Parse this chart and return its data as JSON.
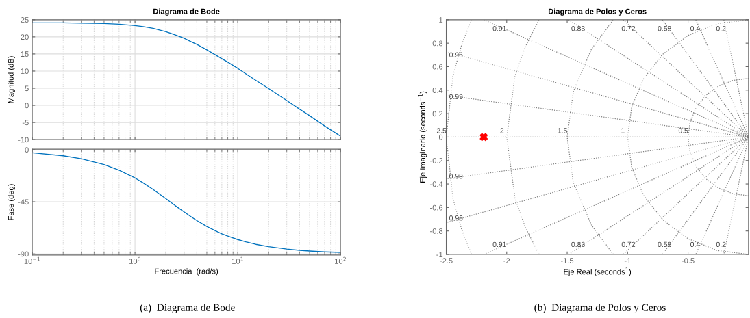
{
  "chart_data": [
    {
      "type": "line",
      "title": "Diagrama de Bode",
      "ylabel": "Magnitud (dB)",
      "log": "x",
      "grid": true,
      "tick_labels": "y",
      "xlim": [
        0.1,
        100
      ],
      "xticks": [
        {
          "value": 0.1,
          "label": null
        },
        {
          "value": 1,
          "label": null
        },
        {
          "value": 10,
          "label": null
        },
        {
          "value": 100,
          "label": null
        }
      ],
      "ylim": [
        -10,
        25
      ],
      "yticks": [
        -10,
        -5,
        0,
        5,
        10,
        15,
        20,
        25
      ],
      "x": [
        0.1,
        0.2,
        0.3,
        0.5,
        0.7,
        1,
        1.2,
        1.5,
        2,
        2.5,
        3,
        3.5,
        4,
        5,
        6,
        7,
        8,
        10,
        12,
        15,
        20,
        30,
        40,
        50,
        70,
        100
      ],
      "series": [
        {
          "color": "#0072bd",
          "values": [
            24.1,
            24.1,
            24.0,
            23.9,
            23.7,
            23.3,
            23.0,
            22.5,
            21.5,
            20.5,
            19.6,
            18.6,
            17.8,
            16.2,
            14.8,
            13.6,
            12.6,
            10.8,
            9.2,
            7.3,
            4.9,
            1.4,
            -1.1,
            -3.0,
            -6.0,
            -9.0
          ]
        }
      ]
    },
    {
      "type": "line",
      "xlabel": "Frecuencia  (rad/s)",
      "ylabel": "Fase (deg)",
      "log": "x",
      "grid": true,
      "xlim": [
        0.1,
        100
      ],
      "xticks": [
        {
          "value": 0.1,
          "label": "10$^{−1}$"
        },
        {
          "value": 1,
          "label": "10$^{0}$"
        },
        {
          "value": 10,
          "label": "10$^{1}$"
        },
        {
          "value": 100,
          "label": "10$^{2}$"
        }
      ],
      "ylim": [
        -91,
        0.5
      ],
      "yticks": [
        -90,
        -45,
        0
      ],
      "x": [
        0.1,
        0.2,
        0.3,
        0.5,
        0.7,
        1,
        1.2,
        1.5,
        2,
        2.5,
        3,
        3.5,
        4,
        5,
        6,
        7,
        8,
        10,
        12,
        15,
        20,
        30,
        40,
        50,
        70,
        100
      ],
      "series": [
        {
          "color": "#0072bd",
          "values": [
            -2.6,
            -5.2,
            -7.8,
            -12.8,
            -17.7,
            -24.4,
            -28.6,
            -34.3,
            -42.3,
            -48.7,
            -53.7,
            -57.8,
            -61.2,
            -66.3,
            -69.9,
            -72.6,
            -74.6,
            -77.6,
            -79.6,
            -81.7,
            -83.7,
            -85.8,
            -86.9,
            -87.5,
            -88.2,
            -88.7
          ]
        }
      ],
      "annotations": [
        "(a)  Diagrama de Bode"
      ]
    },
    {
      "type": "scatter",
      "title": "Diagrama de Polos y Ceros",
      "xlabel": "Eje Real (seconds$^{1}$)",
      "ylabel": "Eje Imaginario (seconds$^{−1}$)",
      "grid": false,
      "xlim": [
        -2.5,
        0
      ],
      "xticks": [
        -2.5,
        -2,
        -1.5,
        -1,
        -0.5
      ],
      "ylim": [
        -1,
        1
      ],
      "yticks": [
        -1,
        -0.8,
        -0.6,
        -0.4,
        -0.2,
        0,
        0.2,
        0.4,
        0.6,
        0.8,
        1
      ],
      "series": [
        {
          "type": "line",
          "line_style": "dotted",
          "color": "#808080",
          "x": [
            -2.5,
            0
          ],
          "values": [
            0,
            0
          ]
        },
        {
          "type": "line",
          "line_style": "dotted",
          "color": "#808080",
          "x": [
            -0.204,
            0,
            -0.204
          ],
          "values": [
            1,
            0,
            -1
          ]
        },
        {
          "type": "line",
          "line_style": "dotted",
          "color": "#808080",
          "x": [
            -0.436,
            0,
            -0.436
          ],
          "values": [
            1,
            0,
            -1
          ]
        },
        {
          "type": "line",
          "line_style": "dotted",
          "color": "#808080",
          "x": [
            -0.712,
            0,
            -0.712
          ],
          "values": [
            1,
            0,
            -1
          ]
        },
        {
          "type": "line",
          "line_style": "dotted",
          "color": "#808080",
          "x": [
            -1.037,
            0,
            -1.037
          ],
          "values": [
            1,
            0,
            -1
          ]
        },
        {
          "type": "line",
          "line_style": "dotted",
          "color": "#808080",
          "x": [
            -1.488,
            0,
            -1.488
          ],
          "values": [
            1,
            0,
            -1
          ]
        },
        {
          "type": "line",
          "line_style": "dotted",
          "color": "#808080",
          "x": [
            -2.19,
            0,
            -2.19
          ],
          "values": [
            1,
            0,
            -1
          ]
        },
        {
          "type": "line",
          "line_style": "dotted",
          "color": "#808080",
          "x": [
            -2.5,
            0,
            -2.5
          ],
          "values": [
            0.729,
            0,
            -0.729
          ]
        },
        {
          "type": "line",
          "line_style": "dotted",
          "color": "#808080",
          "x": [
            -2.5,
            0,
            -2.5
          ],
          "values": [
            0.356,
            0,
            -0.356
          ]
        },
        {
          "type": "line",
          "line_style": "dotted",
          "color": "#808080",
          "x": [
            0,
            -0.129,
            -0.25,
            -0.354,
            -0.433,
            -0.483,
            -0.5,
            -0.483,
            -0.433,
            -0.354,
            -0.25,
            -0.129,
            0
          ],
          "values": [
            -0.5,
            -0.483,
            -0.433,
            -0.354,
            -0.25,
            -0.129,
            0,
            0.129,
            0.25,
            0.354,
            0.433,
            0.483,
            0.5
          ]
        },
        {
          "type": "line",
          "line_style": "dotted",
          "color": "#808080",
          "x": [
            0,
            -0.259,
            -0.5,
            -0.707,
            -0.866,
            -0.966,
            -1,
            -0.966,
            -0.866,
            -0.707,
            -0.5,
            -0.259,
            0
          ],
          "values": [
            -1,
            -0.966,
            -0.866,
            -0.707,
            -0.5,
            -0.259,
            0,
            0.259,
            0.5,
            0.707,
            0.866,
            0.966,
            1
          ]
        },
        {
          "type": "line",
          "line_style": "dotted",
          "color": "#808080",
          "x": [
            -1.118,
            -1.299,
            -1.449,
            -1.5,
            -1.449,
            -1.299,
            -1.118
          ],
          "values": [
            -1,
            -0.75,
            -0.388,
            0,
            0.388,
            0.75,
            1
          ]
        },
        {
          "type": "line",
          "line_style": "dotted",
          "color": "#808080",
          "x": [
            -1.732,
            -1.848,
            -1.932,
            -2,
            -1.932,
            -1.848,
            -1.732
          ],
          "values": [
            -1,
            -0.765,
            -0.518,
            0,
            0.518,
            0.765,
            1
          ]
        },
        {
          "type": "line",
          "line_style": "dotted",
          "color": "#808080",
          "x": [
            -2.291,
            -2.373,
            -2.445,
            -2.5,
            -2.445,
            -2.373,
            -2.291
          ],
          "values": [
            -1,
            -0.786,
            -0.52,
            0,
            0.52,
            0.786,
            1
          ]
        },
        {
          "type": "scatter",
          "marker": "cross",
          "color": "#ff0000",
          "x": [
            -2.19
          ],
          "values": [
            0
          ]
        }
      ],
      "annotations": [
        {
          "text": "0.91",
          "x": -2.02,
          "y": 0.92
        },
        {
          "text": "0.83",
          "x": -1.37,
          "y": 0.92
        },
        {
          "text": "0.72",
          "x": -0.954,
          "y": 0.92
        },
        {
          "text": "0.58",
          "x": -0.655,
          "y": 0.92
        },
        {
          "text": "0.4",
          "x": -0.402,
          "y": 0.92
        },
        {
          "text": "0.2",
          "x": -0.188,
          "y": 0.92
        },
        {
          "text": "0.96",
          "x": -2.38,
          "y": 0.695
        },
        {
          "text": "0.99",
          "x": -2.38,
          "y": 0.339
        },
        {
          "text": "0.99",
          "x": -2.38,
          "y": -0.339
        },
        {
          "text": "0.96",
          "x": -2.38,
          "y": -0.695
        },
        {
          "text": "0.91",
          "x": -2.02,
          "y": -0.92
        },
        {
          "text": "0.83",
          "x": -1.37,
          "y": -0.92
        },
        {
          "text": "0.72",
          "x": -0.954,
          "y": -0.92
        },
        {
          "text": "0.58",
          "x": -0.655,
          "y": -0.92
        },
        {
          "text": "0.4",
          "x": -0.402,
          "y": -0.92
        },
        {
          "text": "0.2",
          "x": -0.188,
          "y": -0.92
        },
        {
          "text": "2.5",
          "x": -2.5,
          "y": 0.05
        },
        {
          "text": "2",
          "x": -2.0,
          "y": 0.05
        },
        {
          "text": "1.5",
          "x": -1.5,
          "y": 0.05
        },
        {
          "text": "1",
          "x": -1.0,
          "y": 0.05
        },
        {
          "text": "0.5",
          "x": -0.5,
          "y": 0.05
        },
        "(b)  Diagrama de Polos y Ceros"
      ]
    }
  ]
}
